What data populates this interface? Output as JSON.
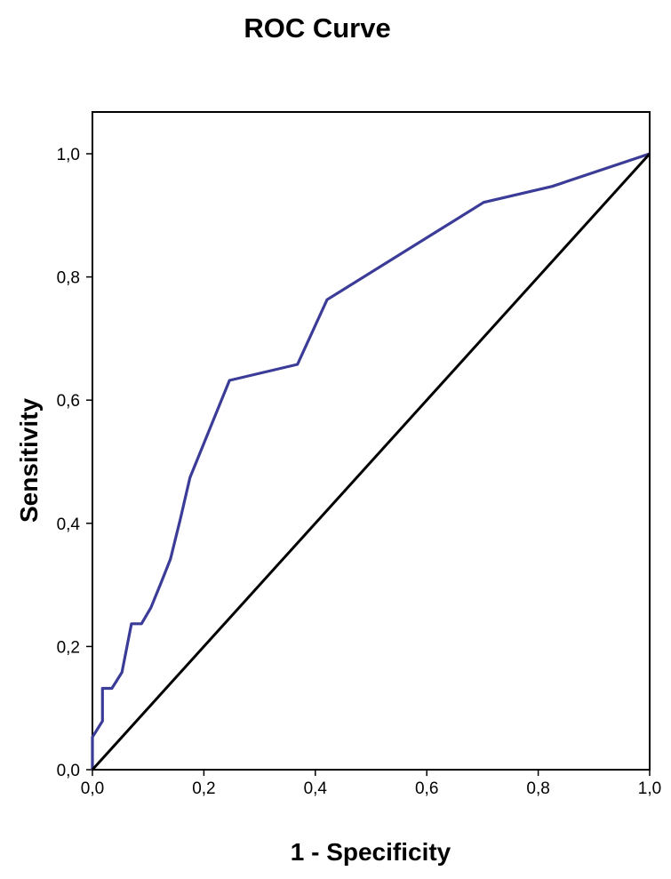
{
  "chart_data": {
    "type": "line",
    "title": "ROC Curve",
    "xlabel": "1 - Specificity",
    "ylabel": "Sensitivity",
    "xlim": [
      0,
      1
    ],
    "ylim": [
      0,
      1
    ],
    "grid": false,
    "x_ticks": [
      "0,0",
      "0,2",
      "0,4",
      "0,6",
      "0,8",
      "1,0"
    ],
    "y_ticks": [
      "0,0",
      "0,2",
      "0,4",
      "0,6",
      "0,8",
      "1,0"
    ],
    "series": [
      {
        "color": "#3b3b98",
        "x": [
          0.0,
          0.0,
          0.018,
          0.018,
          0.035,
          0.053,
          0.07,
          0.088,
          0.105,
          0.123,
          0.14,
          0.158,
          0.175,
          0.246,
          0.368,
          0.421,
          0.702,
          0.825,
          1.0
        ],
        "y": [
          0.0,
          0.053,
          0.079,
          0.132,
          0.132,
          0.158,
          0.237,
          0.237,
          0.263,
          0.303,
          0.342,
          0.408,
          0.474,
          0.632,
          0.658,
          0.763,
          0.921,
          0.947,
          1.0
        ]
      },
      {
        "color": "#000000",
        "x": [
          0.0,
          1.0
        ],
        "y": [
          0.0,
          1.0
        ]
      }
    ]
  }
}
